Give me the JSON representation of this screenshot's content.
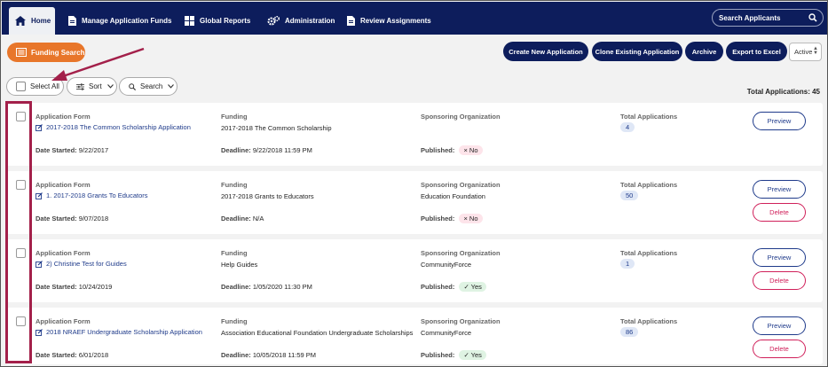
{
  "nav": {
    "home": "Home",
    "funds": "Manage Application Funds",
    "reports": "Global Reports",
    "admin": "Administration",
    "review": "Review Assignments",
    "search_placeholder": "Search Applicants"
  },
  "toolbar": {
    "funding_search": "Funding Search",
    "create": "Create New Application",
    "clone": "Clone Existing Application",
    "archive": "Archive",
    "export": "Export to Excel",
    "status_select": "Active"
  },
  "controls": {
    "select_all": "Select All",
    "sort": "Sort",
    "search": "Search",
    "total": "Total Applications: 45"
  },
  "labels": {
    "form": "Application Form",
    "funding": "Funding",
    "org": "Sponsoring Organization",
    "total": "Total Applications",
    "date_started": "Date Started:",
    "deadline": "Deadline:",
    "published": "Published:",
    "preview": "Preview",
    "delete": "Delete"
  },
  "applications": [
    {
      "form": "2017-2018 The Common Scholarship Application",
      "funding": "2017-2018 The Common Scholarship",
      "org": "",
      "total": "4",
      "date_started": "9/22/2017",
      "deadline": "9/22/2018 11:59 PM",
      "published": "No"
    },
    {
      "form": "1. 2017-2018 Grants To Educators",
      "funding": "2017-2018 Grants to Educators",
      "org": "Education Foundation",
      "total": "50",
      "date_started": "9/07/2018",
      "deadline": "N/A",
      "published": "No"
    },
    {
      "form": "2) Christine Test for Guides",
      "funding": "Help Guides",
      "org": "CommunityForce",
      "total": "1",
      "date_started": "10/24/2019",
      "deadline": "1/05/2020 11:30 PM",
      "published": "Yes"
    },
    {
      "form": "2018 NRAEF Undergraduate Scholarship Application",
      "funding": "Association Educational Foundation Undergraduate Scholarships",
      "org": "CommunityForce",
      "total": "86",
      "date_started": "6/01/2018",
      "deadline": "10/05/2018 11:59 PM",
      "published": "Yes"
    }
  ],
  "colors": {
    "nav_bg": "#0d1d5c",
    "funding_btn": "#e8762a",
    "annotation": "#a3204a"
  }
}
